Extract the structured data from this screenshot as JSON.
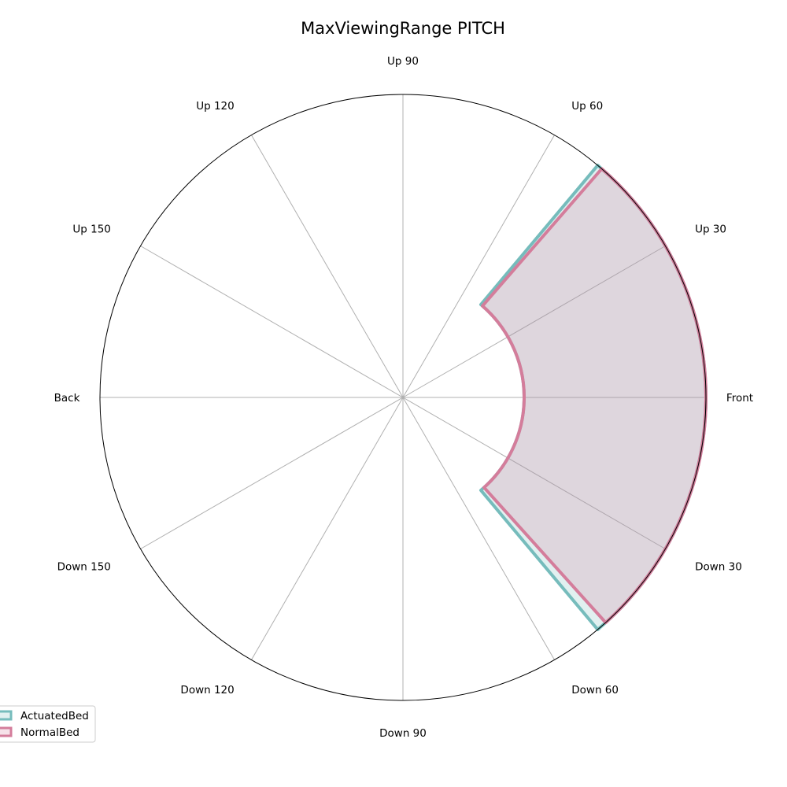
{
  "chart_data": {
    "type": "polar-area",
    "title": "MaxViewingRange PITCH",
    "angle_labels": [
      "Front",
      "Up 30",
      "Up 60",
      "Up 90",
      "Up 120",
      "Up 150",
      "Back",
      "Down 150",
      "Down 120",
      "Down 90",
      "Down 60",
      "Down 30"
    ],
    "angle_labels_degrees": [
      0,
      30,
      60,
      90,
      120,
      150,
      180,
      210,
      240,
      270,
      300,
      330
    ],
    "radial_range": [
      0,
      1
    ],
    "radial_tick_labels": [],
    "grid": true,
    "legend_position": "lower-left",
    "series": [
      {
        "name": "ActuatedBed",
        "color": "#76bcbc",
        "angle_range_degrees": [
          -50,
          50
        ],
        "outer_radius": 1.0,
        "inner_radius": 0.4
      },
      {
        "name": "NormalBed",
        "color": "#d47d9b",
        "angle_range_degrees": [
          -48,
          49
        ],
        "outer_radius": 1.0,
        "inner_radius": 0.4
      }
    ]
  }
}
